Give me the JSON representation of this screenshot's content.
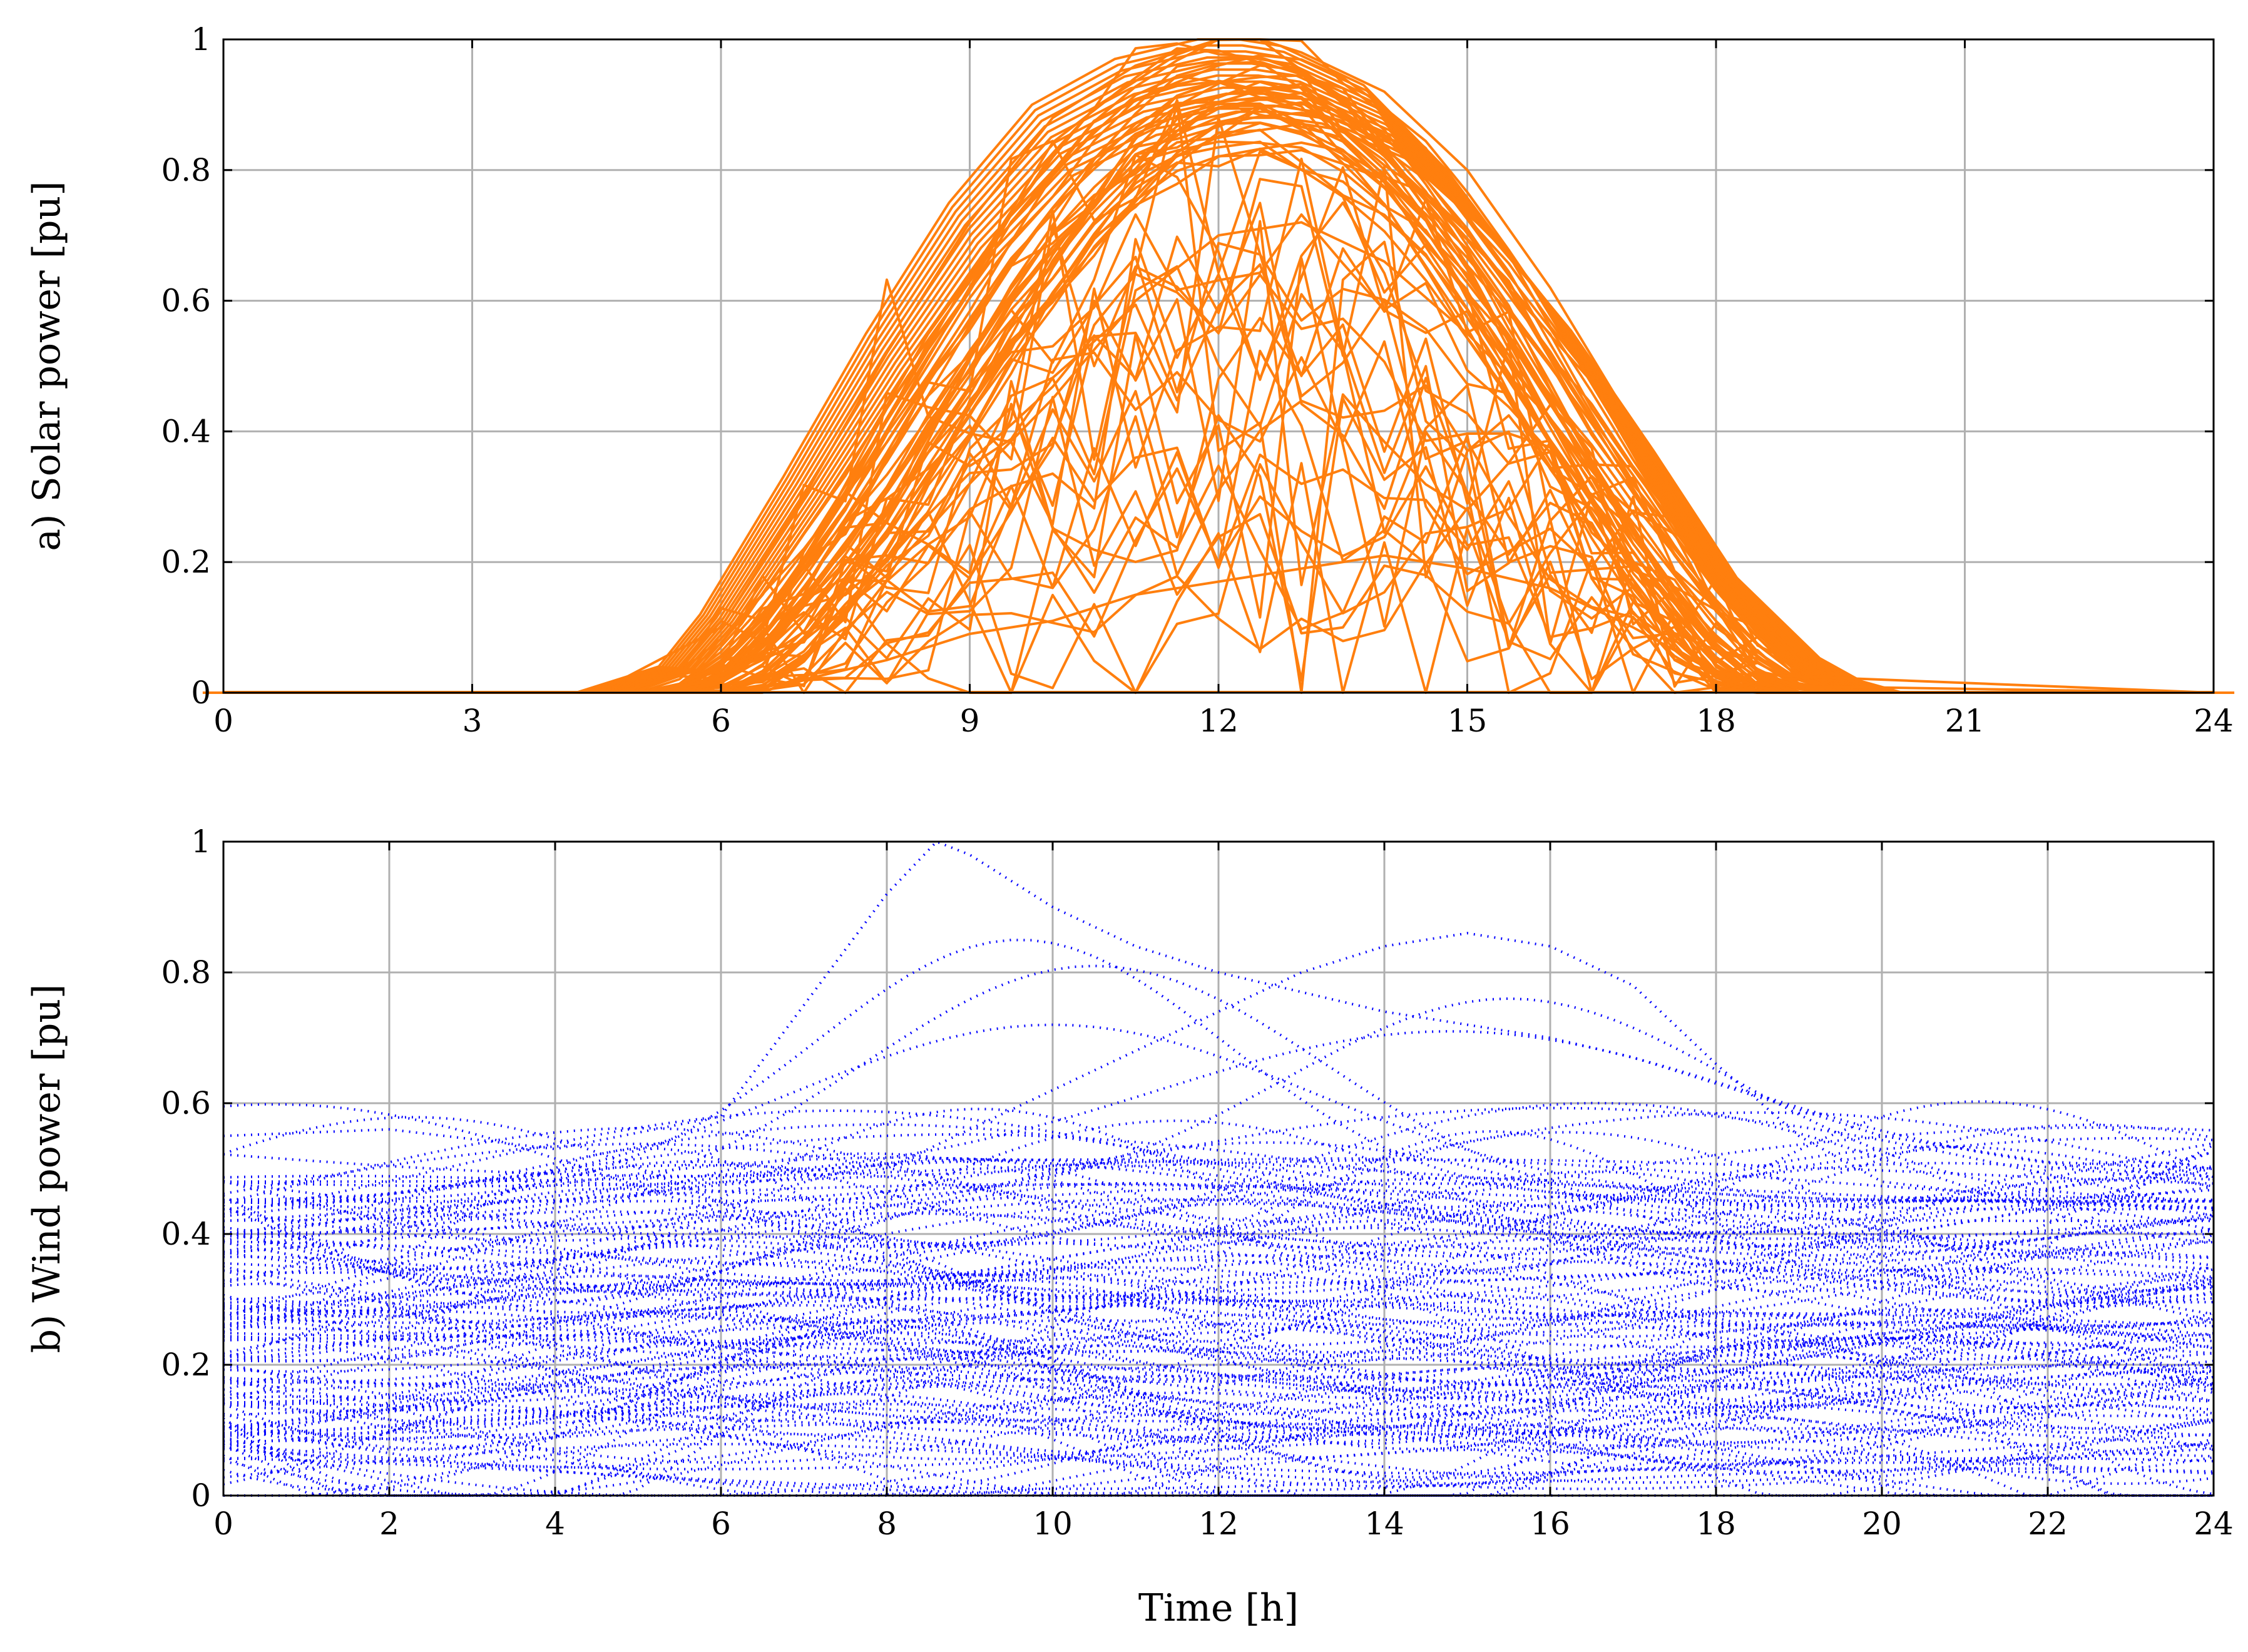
{
  "chart_data": [
    {
      "id": "solar",
      "type": "line",
      "ylabel": "a) Solar power [pu]",
      "xlabel": "",
      "xlim": [
        0,
        24
      ],
      "ylim": [
        0,
        1
      ],
      "xticks": [
        0,
        3,
        6,
        9,
        12,
        15,
        18,
        21,
        24
      ],
      "yticks": [
        0,
        0.2,
        0.4,
        0.6,
        0.8,
        1
      ],
      "ytick_labels": [
        "0",
        "0.2",
        "0.4",
        "0.6",
        "0.8",
        "1"
      ],
      "grid": true,
      "line_style": "solid",
      "color": "#ff7f0e",
      "daylight": {
        "sunrise_h": 4.5,
        "sunset_h": 20.2,
        "peak_h": 12.5
      },
      "series_count": 60,
      "envelope": {
        "x": [
          0,
          3,
          4.5,
          5.5,
          6,
          7,
          8,
          9,
          10,
          11,
          12,
          12.5,
          13,
          14,
          15,
          16,
          17,
          18,
          19,
          19.5,
          20,
          21,
          24
        ],
        "upper": [
          0,
          0,
          0,
          0.04,
          0.12,
          0.33,
          0.55,
          0.75,
          0.9,
          0.97,
          1.0,
          1.0,
          0.99,
          0.93,
          0.8,
          0.63,
          0.42,
          0.2,
          0.06,
          0.02,
          0,
          0,
          0
        ],
        "lower_clear_sky": [
          0,
          0,
          0,
          0,
          0,
          0.05,
          0.2,
          0.42,
          0.62,
          0.78,
          0.86,
          0.87,
          0.86,
          0.78,
          0.62,
          0.42,
          0.2,
          0.05,
          0,
          0,
          0,
          0,
          0
        ]
      },
      "representative_series": [
        {
          "x": [
            0,
            4.5,
            6,
            7,
            8,
            9,
            10,
            11,
            12,
            12.5,
            13,
            14,
            15,
            16,
            17,
            18,
            19,
            20,
            24
          ],
          "y": [
            0,
            0,
            0.1,
            0.3,
            0.52,
            0.72,
            0.88,
            0.96,
            1.0,
            1.0,
            0.98,
            0.92,
            0.8,
            0.62,
            0.41,
            0.19,
            0.05,
            0,
            0
          ]
        },
        {
          "x": [
            0,
            5,
            6,
            7,
            8,
            9,
            10,
            11,
            12,
            13,
            14,
            15,
            16,
            17,
            18,
            19,
            24
          ],
          "y": [
            0,
            0,
            0.02,
            0.08,
            0.18,
            0.32,
            0.45,
            0.6,
            0.7,
            0.72,
            0.66,
            0.55,
            0.42,
            0.26,
            0.1,
            0.01,
            0
          ]
        },
        {
          "x": [
            0,
            6,
            7,
            8,
            9,
            10,
            11,
            12,
            13,
            14,
            15,
            16,
            17,
            18,
            24
          ],
          "y": [
            0,
            0,
            0.02,
            0.05,
            0.09,
            0.11,
            0.15,
            0.17,
            0.19,
            0.21,
            0.19,
            0.16,
            0.1,
            0.03,
            0
          ]
        }
      ]
    },
    {
      "id": "wind",
      "type": "line",
      "ylabel": "b) Wind power [pu]",
      "xlabel": "Time [h]",
      "xlim": [
        0,
        24
      ],
      "ylim": [
        0,
        1
      ],
      "xticks": [
        0,
        2,
        4,
        6,
        8,
        10,
        12,
        14,
        16,
        18,
        20,
        22,
        24
      ],
      "yticks": [
        0,
        0.2,
        0.4,
        0.6,
        0.8,
        1
      ],
      "ytick_labels": [
        "0",
        "0.2",
        "0.4",
        "0.6",
        "0.8",
        "1"
      ],
      "grid": true,
      "line_style": "dotted",
      "color": "#0000ff",
      "series_count": 120,
      "representative_series": [
        {
          "x": [
            0,
            2,
            4,
            6,
            7,
            8,
            8.6,
            9,
            10,
            11,
            12,
            13,
            14,
            15,
            16,
            17,
            18,
            19,
            20,
            22,
            24
          ],
          "y": [
            0.55,
            0.56,
            0.53,
            0.58,
            0.75,
            0.92,
            1.0,
            0.98,
            0.9,
            0.84,
            0.8,
            0.77,
            0.74,
            0.72,
            0.7,
            0.67,
            0.63,
            0.59,
            0.55,
            0.51,
            0.5
          ]
        },
        {
          "x": [
            0,
            4,
            8,
            10,
            12,
            13,
            14,
            15,
            16,
            17,
            18,
            19,
            20,
            22,
            24
          ],
          "y": [
            0.45,
            0.45,
            0.5,
            0.62,
            0.74,
            0.8,
            0.84,
            0.86,
            0.84,
            0.78,
            0.66,
            0.55,
            0.48,
            0.45,
            0.44
          ]
        },
        {
          "x": [
            0,
            2,
            4,
            6,
            8,
            10,
            12,
            14,
            16,
            18,
            20,
            22,
            24
          ],
          "y": [
            0.18,
            0.17,
            0.16,
            0.15,
            0.17,
            0.19,
            0.2,
            0.22,
            0.21,
            0.19,
            0.18,
            0.17,
            0.17
          ]
        }
      ],
      "value_band": {
        "min": 0,
        "max": 0.6,
        "dense_range": [
          0.05,
          0.45
        ]
      }
    }
  ]
}
